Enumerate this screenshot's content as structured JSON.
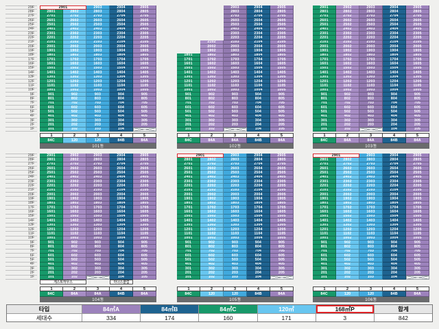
{
  "colors": {
    "page_bg": "#f0f0ee",
    "green": "#17996a",
    "sky_light": "#68c6f0",
    "sky_deep": "#41a9dd",
    "steel": "#1e6390",
    "purple_light": "#a78dc5",
    "purple_deep": "#927ab0",
    "purple": "#9c82bc",
    "highlight_red": "#d8232a",
    "bar_gray": "#6a6b6d"
  },
  "floors": {
    "count": 29,
    "suffix": "F"
  },
  "sections": [
    {
      "buildings": [
        {
          "name": "101동",
          "penthouse": {
            "label": "2901",
            "span": 2
          },
          "columns": [
            {
              "no": "1",
              "type": "84C",
              "color": "green",
              "from": 1,
              "to": 28
            },
            {
              "no": "2",
              "type": "120",
              "color": "sky_light",
              "from": 1,
              "to": 28
            },
            {
              "no": "3",
              "type": "120",
              "color": "sky_deep",
              "from": 1,
              "to": 29
            },
            {
              "no": "4",
              "type": "84B",
              "color": "steel",
              "from": 1,
              "to": 29
            },
            {
              "no": "5",
              "type": "84A",
              "color": "purple",
              "from": 2,
              "to": 29,
              "crossed": [
                1
              ]
            }
          ],
          "amenities": []
        },
        {
          "name": "102동",
          "penthouse": null,
          "columns": [
            {
              "no": "1",
              "type": "84C",
              "color": "green",
              "from": 1,
              "to": 18
            },
            {
              "no": "2",
              "type": "84A",
              "color": "purple_light",
              "from": 1,
              "to": 21
            },
            {
              "no": "3",
              "type": "84A",
              "color": "purple_deep",
              "from": 2,
              "to": 29,
              "crossed": [
                1
              ]
            },
            {
              "no": "4",
              "type": "84B",
              "color": "steel",
              "from": 1,
              "to": 29
            },
            {
              "no": "5",
              "type": "84A",
              "color": "purple",
              "from": 1,
              "to": 29
            }
          ],
          "amenities": []
        },
        {
          "name": "103동",
          "penthouse": null,
          "columns": [
            {
              "no": "1",
              "type": "84C",
              "color": "green",
              "from": 1,
              "to": 29
            },
            {
              "no": "2",
              "type": "84A",
              "color": "purple_light",
              "from": 1,
              "to": 29
            },
            {
              "no": "3",
              "type": "84A",
              "color": "purple_deep",
              "from": 2,
              "to": 29,
              "crossed": [
                1
              ]
            },
            {
              "no": "4",
              "type": "84B",
              "color": "steel",
              "from": 1,
              "to": 29
            },
            {
              "no": "5",
              "type": "84A",
              "color": "purple",
              "from": 1,
              "to": 29
            }
          ],
          "amenities": []
        }
      ]
    },
    {
      "buildings": [
        {
          "name": "104동",
          "penthouse": null,
          "columns": [
            {
              "no": "1",
              "type": "84C",
              "color": "green",
              "from": 1,
              "to": 29
            },
            {
              "no": "2",
              "type": "84A",
              "color": "purple_light",
              "from": 1,
              "to": 29
            },
            {
              "no": "3",
              "type": "84A",
              "color": "purple_deep",
              "from": 2,
              "to": 29,
              "crossed": [
                1
              ]
            },
            {
              "no": "4",
              "type": "84B",
              "color": "steel",
              "from": 1,
              "to": 29
            },
            {
              "no": "5",
              "type": "84A",
              "color": "purple",
              "from": 1,
              "to": 29
            }
          ],
          "amenities": [
            {
              "label": "게스트하우스",
              "col": 1,
              "span": 2
            },
            {
              "label": "아너스클럽",
              "col": 4,
              "span": 1
            }
          ]
        },
        {
          "name": "105동",
          "penthouse": {
            "label": "2901",
            "span": 2
          },
          "columns": [
            {
              "no": "1",
              "type": "84C",
              "color": "green",
              "from": 1,
              "to": 28
            },
            {
              "no": "2",
              "type": "120",
              "color": "sky_light",
              "from": 1,
              "to": 28
            },
            {
              "no": "3",
              "type": "120",
              "color": "sky_deep",
              "from": 1,
              "to": 29
            },
            {
              "no": "4",
              "type": "84B",
              "color": "steel",
              "from": 1,
              "to": 29
            },
            {
              "no": "5",
              "type": "84A",
              "color": "purple",
              "from": 2,
              "to": 29,
              "crossed": [
                1
              ]
            }
          ],
          "amenities": []
        },
        {
          "name": "106동",
          "penthouse": {
            "label": "2901",
            "span": 2
          },
          "columns": [
            {
              "no": "1",
              "type": "84C",
              "color": "green",
              "from": 1,
              "to": 28
            },
            {
              "no": "2",
              "type": "120",
              "color": "sky_light",
              "from": 1,
              "to": 28
            },
            {
              "no": "3",
              "type": "120",
              "color": "sky_deep",
              "from": 1,
              "to": 29
            },
            {
              "no": "4",
              "type": "84B",
              "color": "steel",
              "from": 1,
              "to": 29
            },
            {
              "no": "5",
              "type": "84A",
              "color": "purple",
              "from": 2,
              "to": 29,
              "crossed": [
                1
              ]
            }
          ],
          "amenities": []
        }
      ]
    }
  ],
  "legend": {
    "type_header": "타입",
    "count_header": "세대수",
    "total_header": "합계",
    "total_count": "842",
    "entries": [
      {
        "label": "84㎡A",
        "count": "334",
        "color": "purple",
        "text_color": "#ffffff",
        "highlighted": false
      },
      {
        "label": "84㎡B",
        "count": "174",
        "color": "steel",
        "text_color": "#ffffff",
        "highlighted": false
      },
      {
        "label": "84㎡C",
        "count": "160",
        "color": "green",
        "text_color": "#ffffff",
        "highlighted": false
      },
      {
        "label": "120㎡",
        "count": "171",
        "color": "sky_light",
        "text_color": "#ffffff",
        "highlighted": false
      },
      {
        "label": "168㎡P",
        "count": "3",
        "color": "#ffffff",
        "text_color": "#111111",
        "highlighted": true
      }
    ]
  }
}
